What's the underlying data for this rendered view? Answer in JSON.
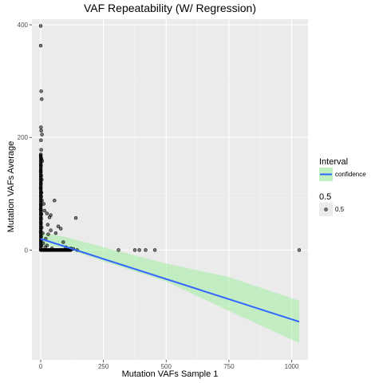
{
  "chart_data": {
    "type": "scatter",
    "title": "VAF Repeatability (W/ Regression)",
    "xlabel": "Mutation VAFs Sample 1",
    "ylabel": "Mutation VAFs Average",
    "xlim": [
      -35,
      1065
    ],
    "ylim": [
      -195,
      410
    ],
    "x_ticks": [
      0,
      250,
      500,
      750,
      1000
    ],
    "y_ticks": [
      0,
      200,
      400
    ],
    "x_tick_labels": [
      "0",
      "250",
      "500",
      "750",
      "1000"
    ],
    "y_tick_labels": [
      "0",
      "200",
      "400"
    ],
    "grid": true,
    "legend_placement": "right",
    "colors": {
      "panel": "#ebebeb",
      "grid_major": "#ffffff",
      "grid_minor": "#f4f4f4",
      "point": "#000000",
      "line": "#3366ff",
      "band": "#90ee90"
    },
    "points": [
      {
        "x": 0,
        "y": 398
      },
      {
        "x": 0,
        "y": 363
      },
      {
        "x": 2,
        "y": 282
      },
      {
        "x": 4,
        "y": 268
      },
      {
        "x": 1,
        "y": 218
      },
      {
        "x": 2,
        "y": 212
      },
      {
        "x": 5,
        "y": 205
      },
      {
        "x": 1,
        "y": 195
      },
      {
        "x": 2,
        "y": 178
      },
      {
        "x": 0,
        "y": 168
      },
      {
        "x": 3,
        "y": 162
      },
      {
        "x": 6,
        "y": 158
      },
      {
        "x": 1,
        "y": 150
      },
      {
        "x": 0,
        "y": 140
      },
      {
        "x": 2,
        "y": 132
      },
      {
        "x": 4,
        "y": 125
      },
      {
        "x": 1,
        "y": 118
      },
      {
        "x": 0,
        "y": 110
      },
      {
        "x": 3,
        "y": 102
      },
      {
        "x": 2,
        "y": 95
      },
      {
        "x": 5,
        "y": 88
      },
      {
        "x": 1,
        "y": 80
      },
      {
        "x": 0,
        "y": 72
      },
      {
        "x": 3,
        "y": 64
      },
      {
        "x": 2,
        "y": 56
      },
      {
        "x": 1,
        "y": 48
      },
      {
        "x": 4,
        "y": 40
      },
      {
        "x": 0,
        "y": 32
      },
      {
        "x": 2,
        "y": 24
      },
      {
        "x": 1,
        "y": 16
      },
      {
        "x": 3,
        "y": 8
      },
      {
        "x": 0,
        "y": 2
      },
      {
        "x": 12,
        "y": 82
      },
      {
        "x": 15,
        "y": 70
      },
      {
        "x": 25,
        "y": 65
      },
      {
        "x": 35,
        "y": 58
      },
      {
        "x": 40,
        "y": 62
      },
      {
        "x": 55,
        "y": 88
      },
      {
        "x": 40,
        "y": 35
      },
      {
        "x": 30,
        "y": 28
      },
      {
        "x": 20,
        "y": 20
      },
      {
        "x": 60,
        "y": 30
      },
      {
        "x": 70,
        "y": 42
      },
      {
        "x": 80,
        "y": 38
      },
      {
        "x": 90,
        "y": 14
      },
      {
        "x": 140,
        "y": 57
      },
      {
        "x": 100,
        "y": 5
      },
      {
        "x": 120,
        "y": 3
      },
      {
        "x": 130,
        "y": 2
      },
      {
        "x": 145,
        "y": 0
      },
      {
        "x": 10,
        "y": 12
      },
      {
        "x": 18,
        "y": 5
      },
      {
        "x": 45,
        "y": 3
      },
      {
        "x": 25,
        "y": 8
      },
      {
        "x": 8,
        "y": 30
      },
      {
        "x": 28,
        "y": 45
      },
      {
        "x": 310,
        "y": 0
      },
      {
        "x": 375,
        "y": 0
      },
      {
        "x": 393,
        "y": 0
      },
      {
        "x": 418,
        "y": 0
      },
      {
        "x": 455,
        "y": 0
      },
      {
        "x": 1030,
        "y": 0
      }
    ],
    "dense_cluster": {
      "x_range": [
        0,
        120
      ],
      "y": 0
    },
    "regression": {
      "x_range": [
        0,
        1030
      ],
      "intercept": 20,
      "slope": -0.143,
      "band_lower": [
        [
          0,
          9
        ],
        [
          100,
          3
        ],
        [
          250,
          -20
        ],
        [
          500,
          -56
        ],
        [
          750,
          -108
        ],
        [
          1030,
          -165
        ]
      ],
      "band_upper": [
        [
          0,
          31
        ],
        [
          100,
          23
        ],
        [
          250,
          5
        ],
        [
          500,
          -24
        ],
        [
          750,
          -48
        ],
        [
          1030,
          -90
        ]
      ]
    },
    "legend": [
      {
        "title": "Interval",
        "label": "confidence",
        "kind": "line"
      },
      {
        "title": "0.5",
        "label": "0.5",
        "kind": "point"
      }
    ]
  }
}
